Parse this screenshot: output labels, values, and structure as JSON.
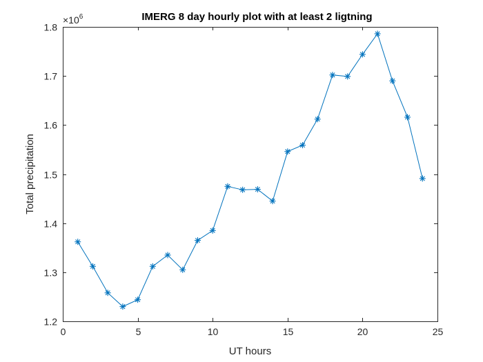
{
  "chart_data": {
    "type": "line",
    "title": "IMERG 8 day hourly plot with at least 2 ligtning",
    "xlabel": "UT hours",
    "ylabel": "Total precipitation",
    "y_multiplier": "×10",
    "y_multiplier_exponent": "6",
    "xlim": [
      0,
      25
    ],
    "ylim": [
      1.2,
      1.8
    ],
    "x_ticks": [
      "0",
      "5",
      "10",
      "15",
      "20",
      "25"
    ],
    "y_ticks": [
      "1.2",
      "1.3",
      "1.4",
      "1.5",
      "1.6",
      "1.7",
      "1.8"
    ],
    "marker": "asterisk",
    "grid": false,
    "series": [
      {
        "name": "Total precipitation",
        "color": "#0072BD",
        "x": [
          1,
          2,
          3,
          4,
          5,
          6,
          7,
          8,
          9,
          10,
          11,
          12,
          13,
          14,
          15,
          16,
          17,
          18,
          19,
          20,
          21,
          22,
          23,
          24
        ],
        "values": [
          1.362,
          1.312,
          1.258,
          1.23,
          1.244,
          1.312,
          1.335,
          1.305,
          1.365,
          1.385,
          1.475,
          1.468,
          1.469,
          1.445,
          1.546,
          1.559,
          1.612,
          1.702,
          1.699,
          1.744,
          1.786,
          1.69,
          1.616,
          1.491
        ]
      }
    ]
  }
}
